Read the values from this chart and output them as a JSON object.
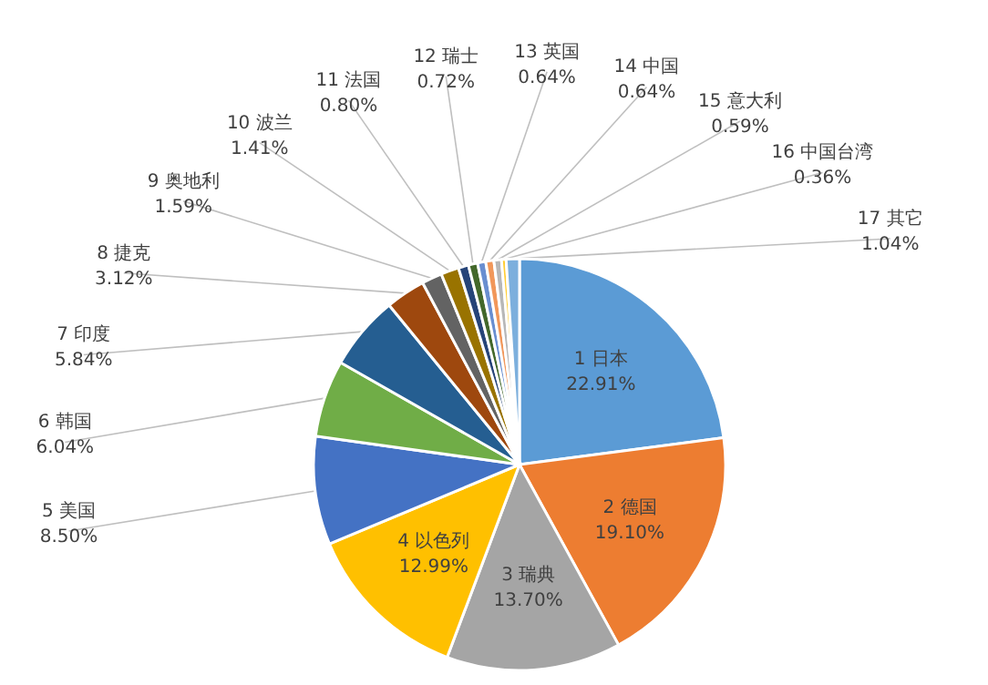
{
  "chart_data": {
    "type": "pie",
    "categories": [
      "1 日本",
      "2 德国",
      "3 瑞典",
      "4 以色列",
      "5 美国",
      "6 韩国",
      "7 印度",
      "8 捷克",
      "9 奥地利",
      "10 波兰",
      "11 法国",
      "12 瑞士",
      "13 英国",
      "14 中国",
      "15 意大利",
      "16 中国台湾",
      "17 其它"
    ],
    "values": [
      22.91,
      19.1,
      13.7,
      12.99,
      8.5,
      6.04,
      5.84,
      3.12,
      1.59,
      1.41,
      0.8,
      0.72,
      0.64,
      0.64,
      0.59,
      0.36,
      1.04
    ],
    "value_labels": [
      "22.91%",
      "19.10%",
      "13.70%",
      "12.99%",
      "8.50%",
      "6.04%",
      "5.84%",
      "3.12%",
      "1.59%",
      "1.41%",
      "0.80%",
      "0.72%",
      "0.64%",
      "0.64%",
      "0.59%",
      "0.36%",
      "1.04%"
    ],
    "colors": [
      "#5b9bd5",
      "#ed7d31",
      "#a5a5a5",
      "#ffc000",
      "#4472c4",
      "#70ad47",
      "#255e91",
      "#9e480e",
      "#636363",
      "#997300",
      "#264478",
      "#43682b",
      "#698ed0",
      "#f1975a",
      "#b7b7b7",
      "#ffcd33",
      "#7cafdd"
    ],
    "legend": false
  }
}
